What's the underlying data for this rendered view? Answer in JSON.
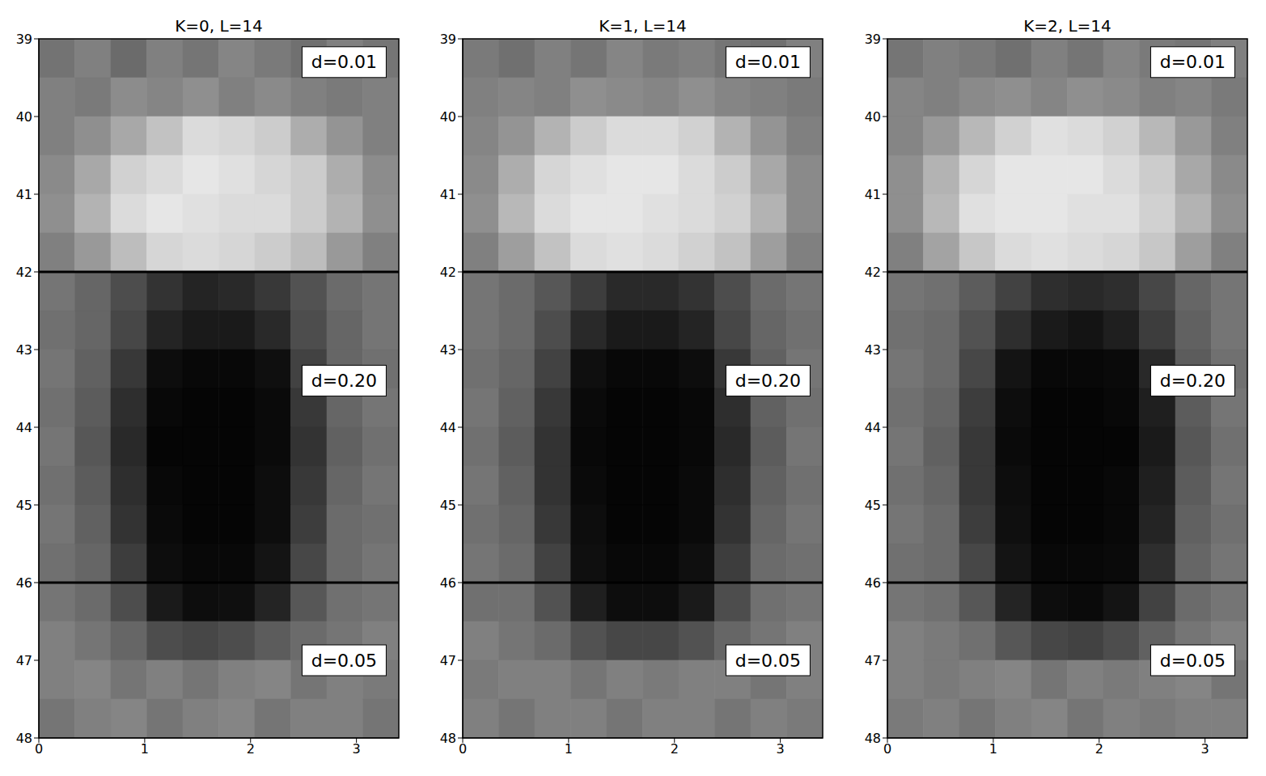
{
  "chart_data": [
    {
      "type": "heatmap",
      "title": "K=0, L=14",
      "color": "gray",
      "zlim": [
        0,
        1
      ],
      "xlim": [
        0,
        3.4
      ],
      "xticks": [
        0,
        1,
        2,
        3
      ],
      "ylim": [
        39,
        48
      ],
      "yticks": [
        39,
        40,
        41,
        42,
        43,
        44,
        45,
        46,
        47,
        48
      ],
      "x_edges": [
        0,
        0.34,
        0.68,
        1.02,
        1.36,
        1.7,
        2.04,
        2.38,
        2.72,
        3.06,
        3.4
      ],
      "y_edges": [
        39,
        39.5,
        40,
        40.5,
        41,
        41.5,
        42,
        42.5,
        43,
        43.5,
        44,
        44.5,
        45,
        45.5,
        46,
        46.5,
        47,
        47.5,
        48
      ],
      "hlines": [
        42,
        46
      ],
      "annotations": [
        "d=0.01",
        "d=0.20",
        "d=0.05"
      ],
      "cells": [
        [
          0.45,
          0.5,
          0.42,
          0.5,
          0.46,
          0.52,
          0.48,
          0.44,
          0.5,
          0.46
        ],
        [
          0.5,
          0.48,
          0.55,
          0.52,
          0.56,
          0.5,
          0.54,
          0.5,
          0.48,
          0.5
        ],
        [
          0.5,
          0.56,
          0.66,
          0.76,
          0.86,
          0.84,
          0.8,
          0.68,
          0.58,
          0.5
        ],
        [
          0.54,
          0.66,
          0.82,
          0.86,
          0.9,
          0.88,
          0.84,
          0.8,
          0.68,
          0.55
        ],
        [
          0.56,
          0.7,
          0.86,
          0.9,
          0.88,
          0.86,
          0.86,
          0.8,
          0.7,
          0.56
        ],
        [
          0.5,
          0.6,
          0.74,
          0.84,
          0.86,
          0.84,
          0.8,
          0.74,
          0.6,
          0.5
        ],
        [
          0.46,
          0.4,
          0.3,
          0.2,
          0.14,
          0.16,
          0.22,
          0.32,
          0.42,
          0.46
        ],
        [
          0.44,
          0.4,
          0.28,
          0.14,
          0.1,
          0.1,
          0.16,
          0.3,
          0.4,
          0.46
        ],
        [
          0.46,
          0.38,
          0.22,
          0.05,
          0.03,
          0.03,
          0.06,
          0.26,
          0.4,
          0.44
        ],
        [
          0.44,
          0.36,
          0.18,
          0.03,
          0.02,
          0.02,
          0.04,
          0.22,
          0.4,
          0.46
        ],
        [
          0.46,
          0.34,
          0.16,
          0.02,
          0.02,
          0.02,
          0.04,
          0.2,
          0.38,
          0.44
        ],
        [
          0.44,
          0.36,
          0.18,
          0.03,
          0.02,
          0.02,
          0.05,
          0.22,
          0.4,
          0.46
        ],
        [
          0.46,
          0.38,
          0.2,
          0.04,
          0.02,
          0.02,
          0.05,
          0.24,
          0.42,
          0.44
        ],
        [
          0.44,
          0.4,
          0.24,
          0.05,
          0.03,
          0.03,
          0.08,
          0.28,
          0.42,
          0.46
        ],
        [
          0.46,
          0.42,
          0.3,
          0.1,
          0.05,
          0.06,
          0.14,
          0.34,
          0.44,
          0.46
        ],
        [
          0.5,
          0.46,
          0.4,
          0.3,
          0.28,
          0.3,
          0.36,
          0.42,
          0.46,
          0.5
        ],
        [
          0.5,
          0.52,
          0.46,
          0.5,
          0.46,
          0.5,
          0.52,
          0.46,
          0.5,
          0.48
        ],
        [
          0.46,
          0.5,
          0.52,
          0.46,
          0.5,
          0.52,
          0.46,
          0.5,
          0.5,
          0.46
        ]
      ]
    },
    {
      "type": "heatmap",
      "title": "K=1, L=14",
      "color": "gray",
      "zlim": [
        0,
        1
      ],
      "xlim": [
        0,
        3.4
      ],
      "xticks": [
        0,
        1,
        2,
        3
      ],
      "ylim": [
        39,
        48
      ],
      "yticks": [
        39,
        40,
        41,
        42,
        43,
        44,
        45,
        46,
        47,
        48
      ],
      "x_edges": [
        0,
        0.34,
        0.68,
        1.02,
        1.36,
        1.7,
        2.04,
        2.38,
        2.72,
        3.06,
        3.4
      ],
      "y_edges": [
        39,
        39.5,
        40,
        40.5,
        41,
        41.5,
        42,
        42.5,
        43,
        43.5,
        44,
        44.5,
        45,
        45.5,
        46,
        46.5,
        47,
        47.5,
        48
      ],
      "hlines": [
        42,
        46
      ],
      "annotations": [
        "d=0.01",
        "d=0.20",
        "d=0.05"
      ],
      "cells": [
        [
          0.48,
          0.44,
          0.5,
          0.46,
          0.52,
          0.48,
          0.5,
          0.46,
          0.44,
          0.5
        ],
        [
          0.5,
          0.52,
          0.5,
          0.56,
          0.54,
          0.52,
          0.56,
          0.52,
          0.5,
          0.48
        ],
        [
          0.52,
          0.58,
          0.7,
          0.8,
          0.86,
          0.86,
          0.82,
          0.7,
          0.58,
          0.5
        ],
        [
          0.54,
          0.68,
          0.84,
          0.88,
          0.9,
          0.9,
          0.86,
          0.8,
          0.66,
          0.54
        ],
        [
          0.56,
          0.72,
          0.86,
          0.9,
          0.9,
          0.88,
          0.86,
          0.82,
          0.7,
          0.54
        ],
        [
          0.5,
          0.62,
          0.76,
          0.86,
          0.88,
          0.86,
          0.82,
          0.76,
          0.62,
          0.5
        ],
        [
          0.46,
          0.42,
          0.34,
          0.24,
          0.16,
          0.16,
          0.2,
          0.3,
          0.42,
          0.46
        ],
        [
          0.46,
          0.42,
          0.3,
          0.16,
          0.1,
          0.1,
          0.14,
          0.28,
          0.4,
          0.44
        ],
        [
          0.44,
          0.4,
          0.26,
          0.06,
          0.03,
          0.03,
          0.05,
          0.22,
          0.38,
          0.46
        ],
        [
          0.46,
          0.38,
          0.22,
          0.04,
          0.02,
          0.02,
          0.03,
          0.18,
          0.38,
          0.44
        ],
        [
          0.44,
          0.36,
          0.2,
          0.03,
          0.02,
          0.02,
          0.03,
          0.16,
          0.36,
          0.46
        ],
        [
          0.46,
          0.38,
          0.2,
          0.04,
          0.02,
          0.02,
          0.04,
          0.18,
          0.38,
          0.44
        ],
        [
          0.44,
          0.4,
          0.22,
          0.05,
          0.02,
          0.02,
          0.04,
          0.2,
          0.4,
          0.46
        ],
        [
          0.46,
          0.42,
          0.26,
          0.06,
          0.03,
          0.03,
          0.06,
          0.24,
          0.42,
          0.44
        ],
        [
          0.44,
          0.44,
          0.32,
          0.12,
          0.05,
          0.05,
          0.1,
          0.3,
          0.44,
          0.46
        ],
        [
          0.5,
          0.46,
          0.42,
          0.32,
          0.28,
          0.28,
          0.32,
          0.4,
          0.46,
          0.5
        ],
        [
          0.48,
          0.5,
          0.5,
          0.46,
          0.5,
          0.48,
          0.5,
          0.5,
          0.46,
          0.5
        ],
        [
          0.5,
          0.46,
          0.5,
          0.5,
          0.46,
          0.5,
          0.5,
          0.46,
          0.5,
          0.48
        ]
      ]
    },
    {
      "type": "heatmap",
      "title": "K=2, L=14",
      "color": "gray",
      "zlim": [
        0,
        1
      ],
      "xlim": [
        0,
        3.4
      ],
      "xticks": [
        0,
        1,
        2,
        3
      ],
      "ylim": [
        39,
        48
      ],
      "yticks": [
        39,
        40,
        41,
        42,
        43,
        44,
        45,
        46,
        47,
        48
      ],
      "x_edges": [
        0,
        0.34,
        0.68,
        1.02,
        1.36,
        1.7,
        2.04,
        2.38,
        2.72,
        3.06,
        3.4
      ],
      "y_edges": [
        39,
        39.5,
        40,
        40.5,
        41,
        41.5,
        42,
        42.5,
        43,
        43.5,
        44,
        44.5,
        45,
        45.5,
        46,
        46.5,
        47,
        47.5,
        48
      ],
      "hlines": [
        42,
        46
      ],
      "annotations": [
        "d=0.01",
        "d=0.20",
        "d=0.05"
      ],
      "cells": [
        [
          0.46,
          0.5,
          0.48,
          0.44,
          0.5,
          0.46,
          0.52,
          0.48,
          0.46,
          0.5
        ],
        [
          0.52,
          0.5,
          0.54,
          0.56,
          0.52,
          0.56,
          0.54,
          0.5,
          0.52,
          0.48
        ],
        [
          0.52,
          0.6,
          0.72,
          0.82,
          0.88,
          0.86,
          0.82,
          0.72,
          0.6,
          0.5
        ],
        [
          0.56,
          0.7,
          0.84,
          0.9,
          0.9,
          0.9,
          0.86,
          0.8,
          0.66,
          0.54
        ],
        [
          0.56,
          0.72,
          0.88,
          0.9,
          0.9,
          0.88,
          0.88,
          0.82,
          0.7,
          0.56
        ],
        [
          0.5,
          0.64,
          0.78,
          0.86,
          0.88,
          0.86,
          0.84,
          0.78,
          0.62,
          0.5
        ],
        [
          0.46,
          0.44,
          0.36,
          0.26,
          0.18,
          0.16,
          0.18,
          0.28,
          0.4,
          0.46
        ],
        [
          0.44,
          0.42,
          0.32,
          0.18,
          0.1,
          0.08,
          0.12,
          0.24,
          0.38,
          0.46
        ],
        [
          0.46,
          0.42,
          0.28,
          0.08,
          0.03,
          0.03,
          0.04,
          0.16,
          0.36,
          0.44
        ],
        [
          0.44,
          0.4,
          0.24,
          0.05,
          0.02,
          0.02,
          0.03,
          0.12,
          0.36,
          0.46
        ],
        [
          0.46,
          0.38,
          0.22,
          0.04,
          0.02,
          0.02,
          0.02,
          0.1,
          0.34,
          0.44
        ],
        [
          0.44,
          0.4,
          0.22,
          0.05,
          0.02,
          0.02,
          0.03,
          0.12,
          0.36,
          0.46
        ],
        [
          0.46,
          0.42,
          0.24,
          0.06,
          0.02,
          0.02,
          0.03,
          0.14,
          0.38,
          0.44
        ],
        [
          0.44,
          0.42,
          0.28,
          0.08,
          0.03,
          0.03,
          0.04,
          0.18,
          0.4,
          0.46
        ],
        [
          0.46,
          0.44,
          0.34,
          0.14,
          0.05,
          0.04,
          0.08,
          0.26,
          0.42,
          0.46
        ],
        [
          0.5,
          0.48,
          0.44,
          0.34,
          0.28,
          0.26,
          0.3,
          0.38,
          0.46,
          0.5
        ],
        [
          0.5,
          0.48,
          0.5,
          0.52,
          0.46,
          0.5,
          0.48,
          0.5,
          0.52,
          0.46
        ],
        [
          0.48,
          0.5,
          0.46,
          0.5,
          0.52,
          0.46,
          0.5,
          0.48,
          0.5,
          0.5
        ]
      ]
    }
  ]
}
